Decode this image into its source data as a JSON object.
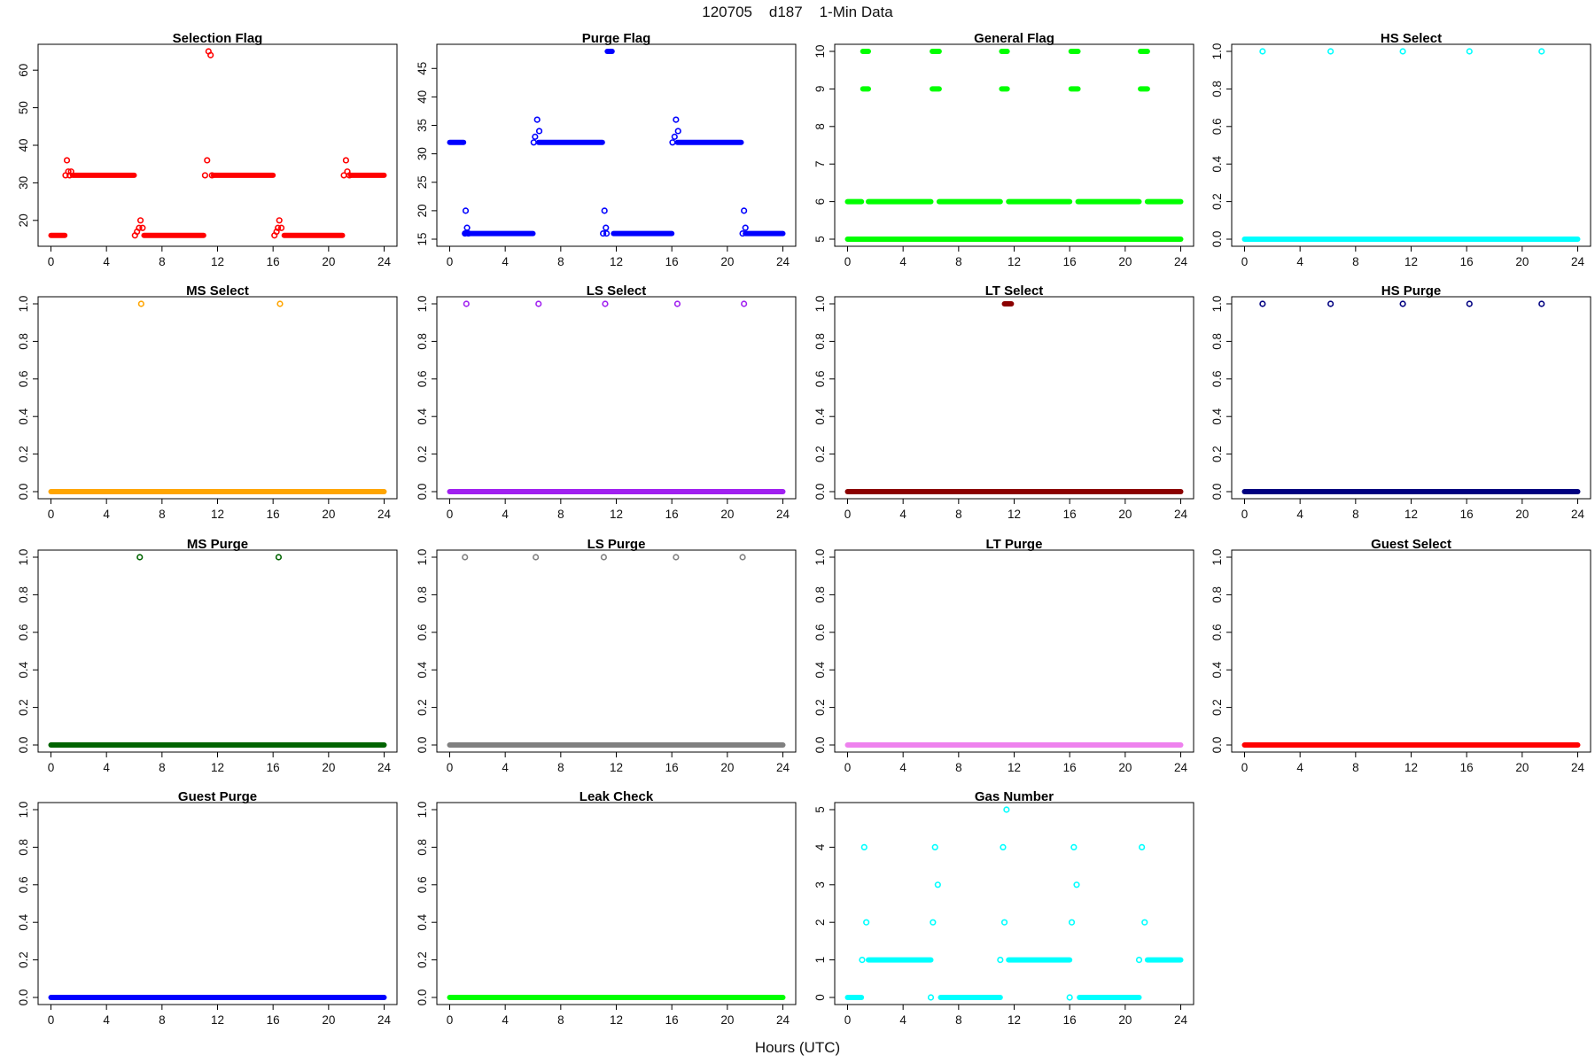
{
  "figure": {
    "title": "120705    d187    1-Min Data",
    "xlabel": "Hours (UTC)",
    "x_tick_labels": [
      "0",
      "4",
      "8",
      "12",
      "16",
      "20",
      "24"
    ]
  },
  "chart_data": [
    {
      "type": "scatter",
      "title": "Selection Flag",
      "color": "#ff0000",
      "xlim": [
        0,
        24
      ],
      "ylim": [
        15,
        65
      ],
      "yticks": [
        20,
        30,
        40,
        50,
        60
      ],
      "ytick_labels": [
        "20",
        "30",
        "40",
        "50",
        "60"
      ],
      "runs": [
        {
          "x0": 0,
          "x1": 1.0,
          "y": 16
        },
        {
          "x0": 1.55,
          "x1": 6.0,
          "y": 32
        },
        {
          "x0": 6.7,
          "x1": 11.0,
          "y": 16
        },
        {
          "x0": 11.7,
          "x1": 16.0,
          "y": 32
        },
        {
          "x0": 16.8,
          "x1": 21.0,
          "y": 16
        },
        {
          "x0": 21.6,
          "x1": 24.0,
          "y": 32
        }
      ],
      "points": [
        [
          1.05,
          32
        ],
        [
          1.15,
          36
        ],
        [
          1.25,
          33
        ],
        [
          1.35,
          32
        ],
        [
          1.45,
          33
        ],
        [
          6.05,
          16
        ],
        [
          6.2,
          17
        ],
        [
          6.35,
          18
        ],
        [
          6.45,
          20
        ],
        [
          6.6,
          18
        ],
        [
          11.1,
          32
        ],
        [
          11.25,
          36
        ],
        [
          11.35,
          65
        ],
        [
          11.5,
          64
        ],
        [
          11.6,
          32
        ],
        [
          16.1,
          16
        ],
        [
          16.25,
          17
        ],
        [
          16.35,
          18
        ],
        [
          16.45,
          20
        ],
        [
          16.6,
          18
        ],
        [
          21.1,
          32
        ],
        [
          21.25,
          36
        ],
        [
          21.35,
          33
        ],
        [
          21.5,
          32
        ]
      ]
    },
    {
      "type": "scatter",
      "title": "Purge Flag",
      "color": "#0000ff",
      "xlim": [
        0,
        24
      ],
      "ylim": [
        15,
        48
      ],
      "yticks": [
        15,
        20,
        25,
        30,
        35,
        40,
        45
      ],
      "ytick_labels": [
        "15",
        "20",
        "25",
        "30",
        "35",
        "40",
        "45"
      ],
      "runs": [
        {
          "x0": 0,
          "x1": 1.0,
          "y": 32
        },
        {
          "x0": 1.1,
          "x1": 6.0,
          "y": 16
        },
        {
          "x0": 6.4,
          "x1": 11.0,
          "y": 32
        },
        {
          "x0": 11.35,
          "x1": 11.7,
          "y": 48
        },
        {
          "x0": 11.8,
          "x1": 16.0,
          "y": 16
        },
        {
          "x0": 16.4,
          "x1": 21.0,
          "y": 32
        },
        {
          "x0": 21.3,
          "x1": 24.0,
          "y": 16
        }
      ],
      "points": [
        [
          1.1,
          16
        ],
        [
          1.15,
          20
        ],
        [
          1.25,
          17
        ],
        [
          1.35,
          16
        ],
        [
          6.05,
          32
        ],
        [
          6.15,
          33
        ],
        [
          6.3,
          36
        ],
        [
          6.45,
          34
        ],
        [
          11.05,
          16
        ],
        [
          11.15,
          20
        ],
        [
          11.25,
          17
        ],
        [
          11.3,
          16
        ],
        [
          16.05,
          32
        ],
        [
          16.2,
          33
        ],
        [
          16.3,
          36
        ],
        [
          16.45,
          34
        ],
        [
          21.1,
          16
        ],
        [
          21.2,
          20
        ],
        [
          21.3,
          17
        ]
      ]
    },
    {
      "type": "scatter",
      "title": "General Flag",
      "color": "#00ff00",
      "xlim": [
        0,
        24
      ],
      "ylim": [
        5,
        10
      ],
      "yticks": [
        5,
        6,
        7,
        8,
        9,
        10
      ],
      "ytick_labels": [
        "5",
        "6",
        "7",
        "8",
        "9",
        "10"
      ],
      "runs": [
        {
          "x0": 0,
          "x1": 24,
          "y": 5
        },
        {
          "x0": 0,
          "x1": 1.0,
          "y": 6
        },
        {
          "x0": 1.5,
          "x1": 6.0,
          "y": 6
        },
        {
          "x0": 6.6,
          "x1": 11.0,
          "y": 6
        },
        {
          "x0": 11.6,
          "x1": 16.0,
          "y": 6
        },
        {
          "x0": 16.6,
          "x1": 21.0,
          "y": 6
        },
        {
          "x0": 21.6,
          "x1": 24.0,
          "y": 6
        },
        {
          "x0": 1.1,
          "x1": 1.5,
          "y": 9
        },
        {
          "x0": 1.1,
          "x1": 1.5,
          "y": 10
        },
        {
          "x0": 6.1,
          "x1": 6.6,
          "y": 9
        },
        {
          "x0": 6.1,
          "x1": 6.6,
          "y": 10
        },
        {
          "x0": 11.1,
          "x1": 11.5,
          "y": 9
        },
        {
          "x0": 11.1,
          "x1": 11.5,
          "y": 10
        },
        {
          "x0": 16.1,
          "x1": 16.6,
          "y": 9
        },
        {
          "x0": 16.1,
          "x1": 16.6,
          "y": 10
        },
        {
          "x0": 21.1,
          "x1": 21.6,
          "y": 9
        },
        {
          "x0": 21.1,
          "x1": 21.6,
          "y": 10
        }
      ],
      "points": []
    },
    {
      "type": "scatter",
      "title": "HS Select",
      "color": "#00ffff",
      "xlim": [
        0,
        24
      ],
      "ylim": [
        0,
        1
      ],
      "yticks": [
        0,
        0.2,
        0.4,
        0.6,
        0.8,
        1.0
      ],
      "ytick_labels": [
        "0.0",
        "0.2",
        "0.4",
        "0.6",
        "0.8",
        "1.0"
      ],
      "runs": [
        {
          "x0": 0,
          "x1": 24,
          "y": 0
        }
      ],
      "points": [
        [
          1.3,
          1
        ],
        [
          6.2,
          1
        ],
        [
          11.4,
          1
        ],
        [
          16.2,
          1
        ],
        [
          21.4,
          1
        ]
      ]
    },
    {
      "type": "scatter",
      "title": "MS Select",
      "color": "#ffa500",
      "xlim": [
        0,
        24
      ],
      "ylim": [
        0,
        1
      ],
      "yticks": [
        0,
        0.2,
        0.4,
        0.6,
        0.8,
        1.0
      ],
      "ytick_labels": [
        "0.0",
        "0.2",
        "0.4",
        "0.6",
        "0.8",
        "1.0"
      ],
      "runs": [
        {
          "x0": 0,
          "x1": 24,
          "y": 0
        }
      ],
      "points": [
        [
          6.5,
          1
        ],
        [
          16.5,
          1
        ]
      ]
    },
    {
      "type": "scatter",
      "title": "LS Select",
      "color": "#a020f0",
      "xlim": [
        0,
        24
      ],
      "ylim": [
        0,
        1
      ],
      "yticks": [
        0,
        0.2,
        0.4,
        0.6,
        0.8,
        1.0
      ],
      "ytick_labels": [
        "0.0",
        "0.2",
        "0.4",
        "0.6",
        "0.8",
        "1.0"
      ],
      "runs": [
        {
          "x0": 0,
          "x1": 24,
          "y": 0
        }
      ],
      "points": [
        [
          1.2,
          1
        ],
        [
          6.4,
          1
        ],
        [
          11.2,
          1
        ],
        [
          16.4,
          1
        ],
        [
          21.2,
          1
        ]
      ]
    },
    {
      "type": "scatter",
      "title": "LT Select",
      "color": "#8b0000",
      "xlim": [
        0,
        24
      ],
      "ylim": [
        0,
        1
      ],
      "yticks": [
        0,
        0.2,
        0.4,
        0.6,
        0.8,
        1.0
      ],
      "ytick_labels": [
        "0.0",
        "0.2",
        "0.4",
        "0.6",
        "0.8",
        "1.0"
      ],
      "runs": [
        {
          "x0": 0,
          "x1": 24,
          "y": 0
        },
        {
          "x0": 11.3,
          "x1": 11.8,
          "y": 1
        }
      ],
      "points": []
    },
    {
      "type": "scatter",
      "title": "HS Purge",
      "color": "#000080",
      "xlim": [
        0,
        24
      ],
      "ylim": [
        0,
        1
      ],
      "yticks": [
        0,
        0.2,
        0.4,
        0.6,
        0.8,
        1.0
      ],
      "ytick_labels": [
        "0.0",
        "0.2",
        "0.4",
        "0.6",
        "0.8",
        "1.0"
      ],
      "runs": [
        {
          "x0": 0,
          "x1": 24,
          "y": 0
        }
      ],
      "points": [
        [
          1.3,
          1
        ],
        [
          6.2,
          1
        ],
        [
          11.4,
          1
        ],
        [
          16.2,
          1
        ],
        [
          21.4,
          1
        ]
      ]
    },
    {
      "type": "scatter",
      "title": "MS Purge",
      "color": "#006400",
      "xlim": [
        0,
        24
      ],
      "ylim": [
        0,
        1
      ],
      "yticks": [
        0,
        0.2,
        0.4,
        0.6,
        0.8,
        1.0
      ],
      "ytick_labels": [
        "0.0",
        "0.2",
        "0.4",
        "0.6",
        "0.8",
        "1.0"
      ],
      "runs": [
        {
          "x0": 0,
          "x1": 24,
          "y": 0
        }
      ],
      "points": [
        [
          6.4,
          1
        ],
        [
          16.4,
          1
        ]
      ]
    },
    {
      "type": "scatter",
      "title": "LS Purge",
      "color": "#808080",
      "xlim": [
        0,
        24
      ],
      "ylim": [
        0,
        1
      ],
      "yticks": [
        0,
        0.2,
        0.4,
        0.6,
        0.8,
        1.0
      ],
      "ytick_labels": [
        "0.0",
        "0.2",
        "0.4",
        "0.6",
        "0.8",
        "1.0"
      ],
      "runs": [
        {
          "x0": 0,
          "x1": 24,
          "y": 0
        }
      ],
      "points": [
        [
          1.1,
          1
        ],
        [
          6.2,
          1
        ],
        [
          11.1,
          1
        ],
        [
          16.3,
          1
        ],
        [
          21.1,
          1
        ]
      ]
    },
    {
      "type": "scatter",
      "title": "LT Purge",
      "color": "#ee82ee",
      "xlim": [
        0,
        24
      ],
      "ylim": [
        0,
        1
      ],
      "yticks": [
        0,
        0.2,
        0.4,
        0.6,
        0.8,
        1.0
      ],
      "ytick_labels": [
        "0.0",
        "0.2",
        "0.4",
        "0.6",
        "0.8",
        "1.0"
      ],
      "runs": [
        {
          "x0": 0,
          "x1": 24,
          "y": 0
        }
      ],
      "points": []
    },
    {
      "type": "scatter",
      "title": "Guest Select",
      "color": "#ff0000",
      "xlim": [
        0,
        24
      ],
      "ylim": [
        0,
        1
      ],
      "yticks": [
        0,
        0.2,
        0.4,
        0.6,
        0.8,
        1.0
      ],
      "ytick_labels": [
        "0.0",
        "0.2",
        "0.4",
        "0.6",
        "0.8",
        "1.0"
      ],
      "runs": [
        {
          "x0": 0,
          "x1": 24,
          "y": 0
        }
      ],
      "points": []
    },
    {
      "type": "scatter",
      "title": "Guest Purge",
      "color": "#0000ff",
      "xlim": [
        0,
        24
      ],
      "ylim": [
        0,
        1
      ],
      "yticks": [
        0,
        0.2,
        0.4,
        0.6,
        0.8,
        1.0
      ],
      "ytick_labels": [
        "0.0",
        "0.2",
        "0.4",
        "0.6",
        "0.8",
        "1.0"
      ],
      "runs": [
        {
          "x0": 0,
          "x1": 24,
          "y": 0
        }
      ],
      "points": []
    },
    {
      "type": "scatter",
      "title": "Leak Check",
      "color": "#00ff00",
      "xlim": [
        0,
        24
      ],
      "ylim": [
        0,
        1
      ],
      "yticks": [
        0,
        0.2,
        0.4,
        0.6,
        0.8,
        1.0
      ],
      "ytick_labels": [
        "0.0",
        "0.2",
        "0.4",
        "0.6",
        "0.8",
        "1.0"
      ],
      "runs": [
        {
          "x0": 0,
          "x1": 24,
          "y": 0
        }
      ],
      "points": []
    },
    {
      "type": "scatter",
      "title": "Gas Number",
      "color": "#00ffff",
      "xlim": [
        0,
        24
      ],
      "ylim": [
        0,
        5
      ],
      "yticks": [
        0,
        1,
        2,
        3,
        4,
        5
      ],
      "ytick_labels": [
        "0",
        "1",
        "2",
        "3",
        "4",
        "5"
      ],
      "runs": [
        {
          "x0": 0,
          "x1": 1.0,
          "y": 0
        },
        {
          "x0": 1.5,
          "x1": 6.0,
          "y": 1
        },
        {
          "x0": 6.7,
          "x1": 11.0,
          "y": 0
        },
        {
          "x0": 11.6,
          "x1": 16.0,
          "y": 1
        },
        {
          "x0": 16.7,
          "x1": 21.0,
          "y": 0
        },
        {
          "x0": 21.6,
          "x1": 24.0,
          "y": 1
        }
      ],
      "points": [
        [
          1.05,
          1
        ],
        [
          1.2,
          4
        ],
        [
          1.35,
          2
        ],
        [
          6.0,
          0
        ],
        [
          6.15,
          2
        ],
        [
          6.3,
          4
        ],
        [
          6.5,
          3
        ],
        [
          11.0,
          1
        ],
        [
          11.2,
          4
        ],
        [
          11.3,
          2
        ],
        [
          11.45,
          5
        ],
        [
          16.0,
          0
        ],
        [
          16.15,
          2
        ],
        [
          16.3,
          4
        ],
        [
          16.5,
          3
        ],
        [
          21.0,
          1
        ],
        [
          21.2,
          4
        ],
        [
          21.4,
          2
        ]
      ]
    }
  ]
}
